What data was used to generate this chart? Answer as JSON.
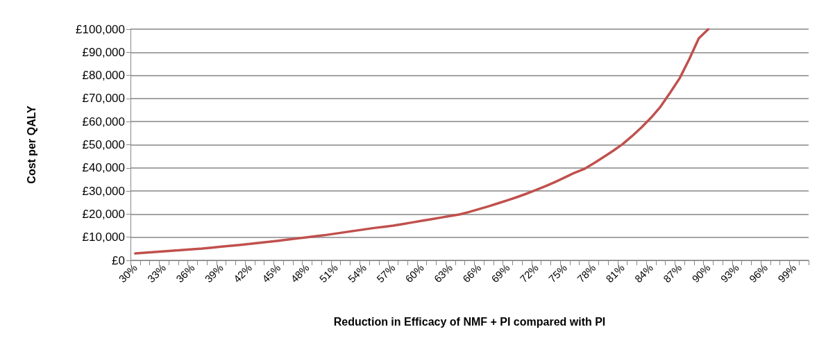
{
  "chart_data": {
    "type": "line",
    "xlabel": "Reduction in Efficacy of NMF + PI compared with PI",
    "ylabel": "Cost per QALY",
    "categories": [
      "30%",
      null,
      null,
      "33%",
      null,
      null,
      "36%",
      null,
      null,
      "39%",
      null,
      null,
      "42%",
      null,
      null,
      "45%",
      null,
      null,
      "48%",
      null,
      null,
      "51%",
      null,
      null,
      "54%",
      null,
      null,
      "57%",
      null,
      null,
      "60%",
      null,
      null,
      "63%",
      null,
      null,
      "66%",
      null,
      null,
      "69%",
      null,
      null,
      "72%",
      null,
      null,
      "75%",
      null,
      null,
      "78%",
      null,
      null,
      "81%",
      null,
      null,
      "84%",
      null,
      null,
      "87%",
      null,
      null,
      "90%",
      null,
      null,
      "93%",
      null,
      null,
      "96%",
      null,
      null,
      "99%",
      null
    ],
    "series": [
      {
        "color": "#c0504d",
        "values": [
          3000,
          3300,
          3600,
          3900,
          4200,
          4500,
          4800,
          5100,
          5500,
          5900,
          6300,
          6700,
          7100,
          7600,
          8000,
          8500,
          9000,
          9500,
          10000,
          10500,
          11000,
          11600,
          12200,
          12800,
          13400,
          14000,
          14500,
          15000,
          15700,
          16400,
          17100,
          17800,
          18500,
          19200,
          19900,
          21000,
          22200,
          23400,
          24700,
          26000,
          27400,
          28900,
          30500,
          32200,
          34000,
          35900,
          37900,
          39500,
          42000,
          44600,
          47300,
          50200,
          53700,
          57500,
          61700,
          66500,
          72500,
          78800,
          87000,
          96000,
          100000,
          null,
          null,
          null,
          null,
          null,
          null,
          null,
          null,
          null,
          null
        ]
      }
    ],
    "ylim": [
      0,
      100000
    ],
    "yticks": [
      {
        "value": 0,
        "label": "£0"
      },
      {
        "value": 10000,
        "label": "£10,000"
      },
      {
        "value": 20000,
        "label": "£20,000"
      },
      {
        "value": 30000,
        "label": "£30,000"
      },
      {
        "value": 40000,
        "label": "£40,000"
      },
      {
        "value": 50000,
        "label": "£50,000"
      },
      {
        "value": 60000,
        "label": "£60,000"
      },
      {
        "value": 70000,
        "label": "£70,000"
      },
      {
        "value": 80000,
        "label": "£80,000"
      },
      {
        "value": 90000,
        "label": "£90,000"
      },
      {
        "value": 100000,
        "label": "£100,000"
      }
    ],
    "grid": "y",
    "marker": "none",
    "line_style": "solid"
  }
}
